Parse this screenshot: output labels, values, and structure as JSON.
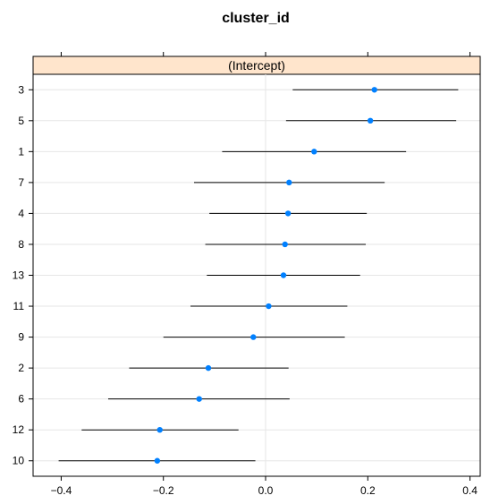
{
  "chart_data": {
    "type": "dotplot",
    "title": "cluster_id",
    "panel_label": "(Intercept)",
    "xlabel": "",
    "ylabel": "",
    "xlim": [
      -0.455,
      0.42
    ],
    "x_ticks": [
      -0.4,
      -0.2,
      0.0,
      0.2,
      0.4
    ],
    "x_tick_labels": [
      "−0.4",
      "−0.2",
      "0.0",
      "0.2",
      "0.4"
    ],
    "grid": true,
    "points": [
      {
        "label": "3",
        "estimate": 0.213,
        "lower": 0.053,
        "upper": 0.377
      },
      {
        "label": "5",
        "estimate": 0.205,
        "lower": 0.04,
        "upper": 0.373
      },
      {
        "label": "1",
        "estimate": 0.095,
        "lower": -0.085,
        "upper": 0.275
      },
      {
        "label": "7",
        "estimate": 0.046,
        "lower": -0.14,
        "upper": 0.233
      },
      {
        "label": "4",
        "estimate": 0.044,
        "lower": -0.11,
        "upper": 0.198
      },
      {
        "label": "8",
        "estimate": 0.038,
        "lower": -0.118,
        "upper": 0.196
      },
      {
        "label": "13",
        "estimate": 0.035,
        "lower": -0.115,
        "upper": 0.185
      },
      {
        "label": "11",
        "estimate": 0.006,
        "lower": -0.147,
        "upper": 0.16
      },
      {
        "label": "9",
        "estimate": -0.024,
        "lower": -0.2,
        "upper": 0.155
      },
      {
        "label": "2",
        "estimate": -0.112,
        "lower": -0.267,
        "upper": 0.045
      },
      {
        "label": "6",
        "estimate": -0.13,
        "lower": -0.308,
        "upper": 0.047
      },
      {
        "label": "12",
        "estimate": -0.207,
        "lower": -0.36,
        "upper": -0.053
      },
      {
        "label": "10",
        "estimate": -0.212,
        "lower": -0.405,
        "upper": -0.02
      }
    ],
    "colors": {
      "point": "#0080ff",
      "interval": "#000000",
      "strip": "#ffe5cc",
      "grid": "#e6e6e6"
    }
  }
}
